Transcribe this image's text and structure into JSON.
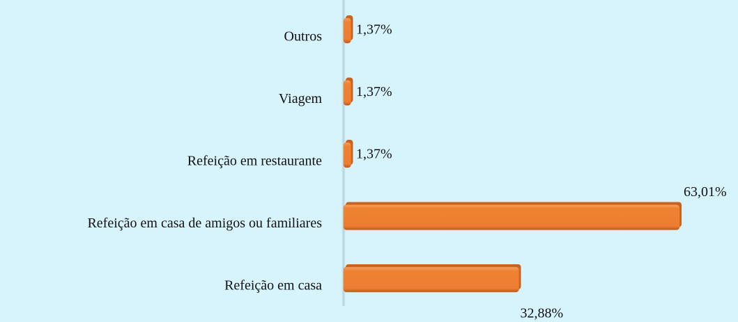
{
  "chart_data": {
    "type": "hbar",
    "categories": [
      "Outros",
      "Viagem",
      "Refeição em restaurante",
      "Refeição em casa de amigos ou familiares",
      "Refeição em casa"
    ],
    "values": [
      1.37,
      1.37,
      1.37,
      63.01,
      32.88
    ],
    "value_labels": [
      "1,37%",
      "1,37%",
      "1,37%",
      "63,01%",
      "32,88%"
    ],
    "color": "#ed7d31"
  }
}
